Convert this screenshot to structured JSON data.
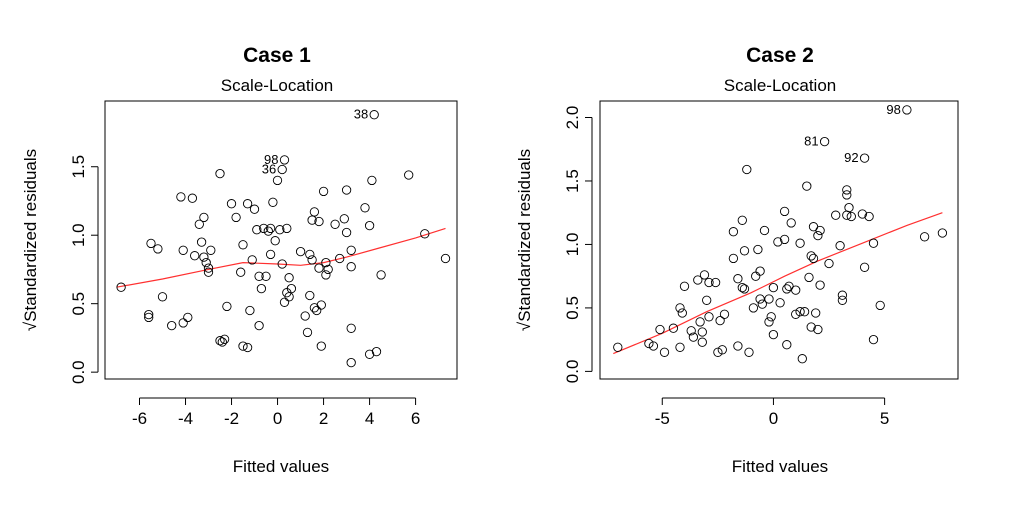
{
  "chart_data": [
    {
      "type": "scatter",
      "title": "Case 1",
      "subtitle": "Scale-Location",
      "xlabel": "Fitted values",
      "ylabel": "√Standardized residuals",
      "xlim": [
        -7.5,
        7.8
      ],
      "ylim": [
        -0.05,
        1.98
      ],
      "xticks": [
        -6,
        -4,
        -2,
        0,
        2,
        4,
        6
      ],
      "xtick_labels": [
        "-6",
        "-4",
        "-2",
        "0",
        "2",
        "4",
        "6"
      ],
      "yticks": [
        0.0,
        0.5,
        1.0,
        1.5
      ],
      "ytick_labels": [
        "0.0",
        "0.5",
        "1.0",
        "1.5"
      ],
      "smooth_color": "#ff3030",
      "smooth": [
        {
          "x": -7.0,
          "y": 0.62
        },
        {
          "x": -5.0,
          "y": 0.68
        },
        {
          "x": -3.0,
          "y": 0.75
        },
        {
          "x": -1.5,
          "y": 0.8
        },
        {
          "x": 0.0,
          "y": 0.79
        },
        {
          "x": 1.0,
          "y": 0.78
        },
        {
          "x": 2.0,
          "y": 0.8
        },
        {
          "x": 3.0,
          "y": 0.84
        },
        {
          "x": 4.5,
          "y": 0.91
        },
        {
          "x": 6.0,
          "y": 0.98
        },
        {
          "x": 7.3,
          "y": 1.05
        }
      ],
      "labeled_points": [
        {
          "label": "38",
          "x": 4.2,
          "y": 1.88
        },
        {
          "label": "98",
          "x": 0.3,
          "y": 1.55
        },
        {
          "label": "36",
          "x": 0.2,
          "y": 1.48
        }
      ],
      "points": [
        {
          "x": -6.8,
          "y": 0.62
        },
        {
          "x": -5.6,
          "y": 0.42
        },
        {
          "x": -5.6,
          "y": 0.4
        },
        {
          "x": -5.5,
          "y": 0.94
        },
        {
          "x": -5.2,
          "y": 0.9
        },
        {
          "x": -5.0,
          "y": 0.55
        },
        {
          "x": -4.6,
          "y": 0.34
        },
        {
          "x": -4.2,
          "y": 1.28
        },
        {
          "x": -4.1,
          "y": 0.89
        },
        {
          "x": -4.1,
          "y": 0.36
        },
        {
          "x": -3.9,
          "y": 0.4
        },
        {
          "x": -3.7,
          "y": 1.27
        },
        {
          "x": -3.6,
          "y": 0.85
        },
        {
          "x": -3.4,
          "y": 1.08
        },
        {
          "x": -3.3,
          "y": 0.95
        },
        {
          "x": -3.2,
          "y": 1.13
        },
        {
          "x": -3.2,
          "y": 0.84
        },
        {
          "x": -3.1,
          "y": 0.8
        },
        {
          "x": -3.0,
          "y": 0.76
        },
        {
          "x": -3.0,
          "y": 0.73
        },
        {
          "x": -2.9,
          "y": 0.89
        },
        {
          "x": -2.5,
          "y": 1.45
        },
        {
          "x": -2.5,
          "y": 0.23
        },
        {
          "x": -2.4,
          "y": 0.22
        },
        {
          "x": -2.3,
          "y": 0.24
        },
        {
          "x": -2.2,
          "y": 0.48
        },
        {
          "x": -2.0,
          "y": 1.23
        },
        {
          "x": -1.8,
          "y": 1.13
        },
        {
          "x": -1.6,
          "y": 0.73
        },
        {
          "x": -1.5,
          "y": 0.93
        },
        {
          "x": -1.5,
          "y": 0.19
        },
        {
          "x": -1.3,
          "y": 0.18
        },
        {
          "x": -1.3,
          "y": 1.23
        },
        {
          "x": -1.2,
          "y": 0.45
        },
        {
          "x": -1.1,
          "y": 0.82
        },
        {
          "x": -1.0,
          "y": 1.19
        },
        {
          "x": -0.9,
          "y": 1.04
        },
        {
          "x": -0.8,
          "y": 0.7
        },
        {
          "x": -0.8,
          "y": 0.34
        },
        {
          "x": -0.7,
          "y": 0.61
        },
        {
          "x": -0.6,
          "y": 1.05
        },
        {
          "x": -0.5,
          "y": 0.7
        },
        {
          "x": -0.4,
          "y": 1.03
        },
        {
          "x": -0.3,
          "y": 0.86
        },
        {
          "x": -0.3,
          "y": 1.05
        },
        {
          "x": -0.2,
          "y": 1.24
        },
        {
          "x": -0.1,
          "y": 0.96
        },
        {
          "x": 0.0,
          "y": 1.4
        },
        {
          "x": 0.1,
          "y": 1.04
        },
        {
          "x": 0.2,
          "y": 0.79
        },
        {
          "x": 0.3,
          "y": 0.51
        },
        {
          "x": 0.4,
          "y": 1.05
        },
        {
          "x": 0.4,
          "y": 0.58
        },
        {
          "x": 0.5,
          "y": 0.69
        },
        {
          "x": 0.5,
          "y": 0.55
        },
        {
          "x": 0.6,
          "y": 0.61
        },
        {
          "x": 1.0,
          "y": 0.88
        },
        {
          "x": 1.2,
          "y": 0.41
        },
        {
          "x": 1.3,
          "y": 0.29
        },
        {
          "x": 1.4,
          "y": 0.86
        },
        {
          "x": 1.4,
          "y": 0.56
        },
        {
          "x": 1.5,
          "y": 1.11
        },
        {
          "x": 1.5,
          "y": 0.82
        },
        {
          "x": 1.6,
          "y": 1.17
        },
        {
          "x": 1.6,
          "y": 0.47
        },
        {
          "x": 1.7,
          "y": 0.45
        },
        {
          "x": 1.8,
          "y": 1.1
        },
        {
          "x": 1.8,
          "y": 0.76
        },
        {
          "x": 1.9,
          "y": 0.49
        },
        {
          "x": 1.9,
          "y": 0.19
        },
        {
          "x": 2.0,
          "y": 1.32
        },
        {
          "x": 2.1,
          "y": 0.8
        },
        {
          "x": 2.1,
          "y": 0.71
        },
        {
          "x": 2.2,
          "y": 0.75
        },
        {
          "x": 2.5,
          "y": 1.08
        },
        {
          "x": 2.7,
          "y": 0.83
        },
        {
          "x": 2.9,
          "y": 1.12
        },
        {
          "x": 3.0,
          "y": 1.02
        },
        {
          "x": 3.0,
          "y": 1.33
        },
        {
          "x": 3.2,
          "y": 0.89
        },
        {
          "x": 3.2,
          "y": 0.77
        },
        {
          "x": 3.2,
          "y": 0.32
        },
        {
          "x": 3.2,
          "y": 0.07
        },
        {
          "x": 3.8,
          "y": 1.2
        },
        {
          "x": 4.0,
          "y": 1.07
        },
        {
          "x": 4.0,
          "y": 0.13
        },
        {
          "x": 4.1,
          "y": 1.4
        },
        {
          "x": 4.3,
          "y": 0.15
        },
        {
          "x": 4.5,
          "y": 0.71
        },
        {
          "x": 5.7,
          "y": 1.44
        },
        {
          "x": 6.4,
          "y": 1.01
        },
        {
          "x": 7.3,
          "y": 0.83
        }
      ]
    },
    {
      "type": "scatter",
      "title": "Case 2",
      "subtitle": "Scale-Location",
      "xlabel": "Fitted values",
      "ylabel": "√Standardized residuals",
      "xlim": [
        -7.8,
        8.3
      ],
      "ylim": [
        -0.06,
        2.13
      ],
      "xticks": [
        -5,
        0,
        5
      ],
      "xtick_labels": [
        "-5",
        "0",
        "5"
      ],
      "yticks": [
        0.0,
        0.5,
        1.0,
        1.5,
        2.0
      ],
      "ytick_labels": [
        "0.0",
        "0.5",
        "1.0",
        "1.5",
        "2.0"
      ],
      "smooth_color": "#ff3030",
      "smooth": [
        {
          "x": -7.2,
          "y": 0.14
        },
        {
          "x": -5.0,
          "y": 0.3
        },
        {
          "x": -3.0,
          "y": 0.47
        },
        {
          "x": -1.0,
          "y": 0.62
        },
        {
          "x": 0.5,
          "y": 0.75
        },
        {
          "x": 2.0,
          "y": 0.87
        },
        {
          "x": 4.0,
          "y": 1.01
        },
        {
          "x": 6.0,
          "y": 1.15
        },
        {
          "x": 7.6,
          "y": 1.25
        }
      ],
      "labeled_points": [
        {
          "label": "98",
          "x": 6.0,
          "y": 2.06
        },
        {
          "label": "81",
          "x": 2.3,
          "y": 1.81
        },
        {
          "label": "92",
          "x": 4.1,
          "y": 1.68
        }
      ],
      "points": [
        {
          "x": -7.0,
          "y": 0.19
        },
        {
          "x": -5.6,
          "y": 0.22
        },
        {
          "x": -5.4,
          "y": 0.2
        },
        {
          "x": -5.1,
          "y": 0.33
        },
        {
          "x": -4.9,
          "y": 0.15
        },
        {
          "x": -4.5,
          "y": 0.34
        },
        {
          "x": -4.2,
          "y": 0.19
        },
        {
          "x": -4.2,
          "y": 0.5
        },
        {
          "x": -4.1,
          "y": 0.46
        },
        {
          "x": -4.0,
          "y": 0.67
        },
        {
          "x": -3.7,
          "y": 0.32
        },
        {
          "x": -3.6,
          "y": 0.27
        },
        {
          "x": -3.4,
          "y": 0.72
        },
        {
          "x": -3.3,
          "y": 0.39
        },
        {
          "x": -3.2,
          "y": 0.23
        },
        {
          "x": -3.2,
          "y": 0.31
        },
        {
          "x": -3.1,
          "y": 0.76
        },
        {
          "x": -3.0,
          "y": 0.56
        },
        {
          "x": -2.9,
          "y": 0.43
        },
        {
          "x": -2.9,
          "y": 0.7
        },
        {
          "x": -2.6,
          "y": 0.7
        },
        {
          "x": -2.5,
          "y": 0.15
        },
        {
          "x": -2.4,
          "y": 0.4
        },
        {
          "x": -2.3,
          "y": 0.17
        },
        {
          "x": -2.2,
          "y": 0.45
        },
        {
          "x": -1.8,
          "y": 1.1
        },
        {
          "x": -1.8,
          "y": 0.89
        },
        {
          "x": -1.6,
          "y": 0.73
        },
        {
          "x": -1.6,
          "y": 0.2
        },
        {
          "x": -1.4,
          "y": 1.19
        },
        {
          "x": -1.4,
          "y": 0.66
        },
        {
          "x": -1.3,
          "y": 0.95
        },
        {
          "x": -1.3,
          "y": 0.65
        },
        {
          "x": -1.2,
          "y": 1.59
        },
        {
          "x": -1.1,
          "y": 0.15
        },
        {
          "x": -0.9,
          "y": 0.5
        },
        {
          "x": -0.8,
          "y": 0.75
        },
        {
          "x": -0.7,
          "y": 0.96
        },
        {
          "x": -0.6,
          "y": 0.79
        },
        {
          "x": -0.6,
          "y": 0.57
        },
        {
          "x": -0.5,
          "y": 0.53
        },
        {
          "x": -0.4,
          "y": 1.11
        },
        {
          "x": -0.2,
          "y": 0.57
        },
        {
          "x": -0.2,
          "y": 0.39
        },
        {
          "x": -0.1,
          "y": 0.43
        },
        {
          "x": 0.0,
          "y": 0.66
        },
        {
          "x": 0.0,
          "y": 0.29
        },
        {
          "x": 0.2,
          "y": 1.02
        },
        {
          "x": 0.3,
          "y": 0.54
        },
        {
          "x": 0.5,
          "y": 1.26
        },
        {
          "x": 0.5,
          "y": 1.04
        },
        {
          "x": 0.6,
          "y": 0.65
        },
        {
          "x": 0.6,
          "y": 0.21
        },
        {
          "x": 0.7,
          "y": 0.67
        },
        {
          "x": 0.8,
          "y": 1.17
        },
        {
          "x": 1.0,
          "y": 0.64
        },
        {
          "x": 1.0,
          "y": 0.45
        },
        {
          "x": 1.2,
          "y": 0.47
        },
        {
          "x": 1.2,
          "y": 1.01
        },
        {
          "x": 1.3,
          "y": 0.1
        },
        {
          "x": 1.4,
          "y": 0.47
        },
        {
          "x": 1.5,
          "y": 1.46
        },
        {
          "x": 1.6,
          "y": 0.74
        },
        {
          "x": 1.7,
          "y": 0.91
        },
        {
          "x": 1.7,
          "y": 0.35
        },
        {
          "x": 1.8,
          "y": 1.14
        },
        {
          "x": 1.8,
          "y": 0.89
        },
        {
          "x": 1.9,
          "y": 0.46
        },
        {
          "x": 2.0,
          "y": 1.07
        },
        {
          "x": 2.0,
          "y": 0.33
        },
        {
          "x": 2.1,
          "y": 1.11
        },
        {
          "x": 2.1,
          "y": 0.68
        },
        {
          "x": 2.5,
          "y": 0.85
        },
        {
          "x": 2.8,
          "y": 1.23
        },
        {
          "x": 3.0,
          "y": 0.99
        },
        {
          "x": 3.1,
          "y": 0.56
        },
        {
          "x": 3.1,
          "y": 0.6
        },
        {
          "x": 3.3,
          "y": 1.43
        },
        {
          "x": 3.3,
          "y": 1.39
        },
        {
          "x": 3.3,
          "y": 1.23
        },
        {
          "x": 3.4,
          "y": 1.29
        },
        {
          "x": 3.5,
          "y": 1.22
        },
        {
          "x": 4.0,
          "y": 1.24
        },
        {
          "x": 4.1,
          "y": 0.82
        },
        {
          "x": 4.3,
          "y": 1.22
        },
        {
          "x": 4.5,
          "y": 1.01
        },
        {
          "x": 4.5,
          "y": 0.25
        },
        {
          "x": 4.8,
          "y": 0.52
        },
        {
          "x": 6.8,
          "y": 1.06
        },
        {
          "x": 7.6,
          "y": 1.09
        }
      ]
    }
  ]
}
